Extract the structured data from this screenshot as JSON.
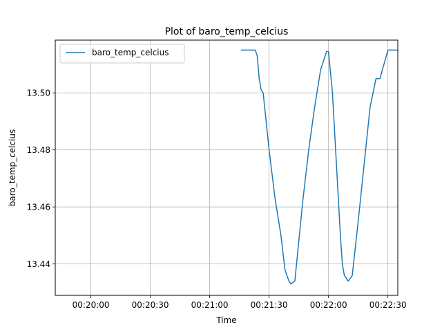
{
  "chart_data": {
    "type": "line",
    "title": "Plot of baro_temp_celcius",
    "xlabel": "Time",
    "ylabel": "baro_temp_celcius",
    "x_range": [
      "00:19:42",
      "00:22:35"
    ],
    "ylim": [
      13.429,
      13.5185
    ],
    "x_ticks": [
      "00:20:00",
      "00:20:30",
      "00:21:00",
      "00:21:30",
      "00:22:00",
      "00:22:30"
    ],
    "y_ticks": [
      13.44,
      13.46,
      13.48,
      13.5
    ],
    "y_tick_labels": [
      "13.44",
      "13.46",
      "13.48",
      "13.50"
    ],
    "grid": true,
    "legend_position": "top-left",
    "series": [
      {
        "name": "baro_temp_celcius",
        "color": "#1f77b4",
        "x": [
          "00:21:16",
          "00:21:23",
          "00:21:24",
          "00:21:25",
          "00:21:26",
          "00:21:27",
          "00:21:30",
          "00:21:33",
          "00:21:36",
          "00:21:38",
          "00:21:40",
          "00:21:41",
          "00:21:43",
          "00:21:47",
          "00:21:50",
          "00:21:53",
          "00:21:56",
          "00:21:59",
          "00:22:00",
          "00:22:02",
          "00:22:04",
          "00:22:06",
          "00:22:07",
          "00:22:08",
          "00:22:10",
          "00:22:12",
          "00:22:15",
          "00:22:18",
          "00:22:21",
          "00:22:24",
          "00:22:26",
          "00:22:30",
          "00:22:35"
        ],
        "y": [
          13.515,
          13.515,
          13.513,
          13.505,
          13.501,
          13.5,
          13.48,
          13.463,
          13.45,
          13.438,
          13.434,
          13.433,
          13.434,
          13.462,
          13.48,
          13.495,
          13.508,
          13.5145,
          13.5145,
          13.5,
          13.475,
          13.45,
          13.44,
          13.436,
          13.434,
          13.436,
          13.455,
          13.475,
          13.495,
          13.505,
          13.505,
          13.515,
          13.515
        ]
      }
    ]
  }
}
